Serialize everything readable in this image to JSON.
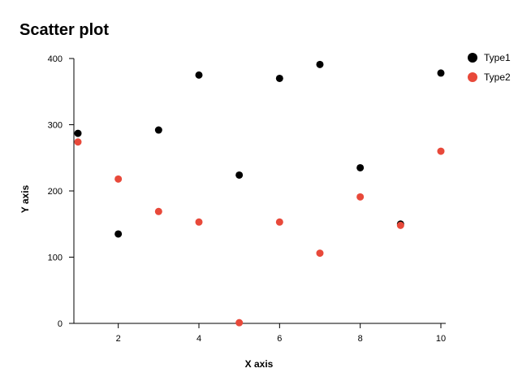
{
  "chart_data": {
    "type": "scatter",
    "title": "Scatter plot",
    "xlabel": "X axis",
    "ylabel": "Y axis",
    "xlim": [
      1,
      10
    ],
    "ylim": [
      0,
      400
    ],
    "x_ticks": [
      2,
      4,
      6,
      8,
      10
    ],
    "y_ticks": [
      0,
      100,
      200,
      300,
      400
    ],
    "grid": false,
    "legend_position": "top-right",
    "series": [
      {
        "name": "Type1",
        "color": "#000000",
        "x": [
          1,
          2,
          3,
          4,
          5,
          6,
          7,
          8,
          9,
          10
        ],
        "y": [
          287,
          135,
          292,
          375,
          224,
          370,
          391,
          235,
          150,
          378
        ]
      },
      {
        "name": "Type2",
        "color": "#e8493a",
        "x": [
          1,
          2,
          3,
          4,
          5,
          6,
          7,
          8,
          9,
          10
        ],
        "y": [
          274,
          218,
          169,
          153,
          1,
          153,
          106,
          191,
          148,
          260
        ]
      }
    ]
  }
}
